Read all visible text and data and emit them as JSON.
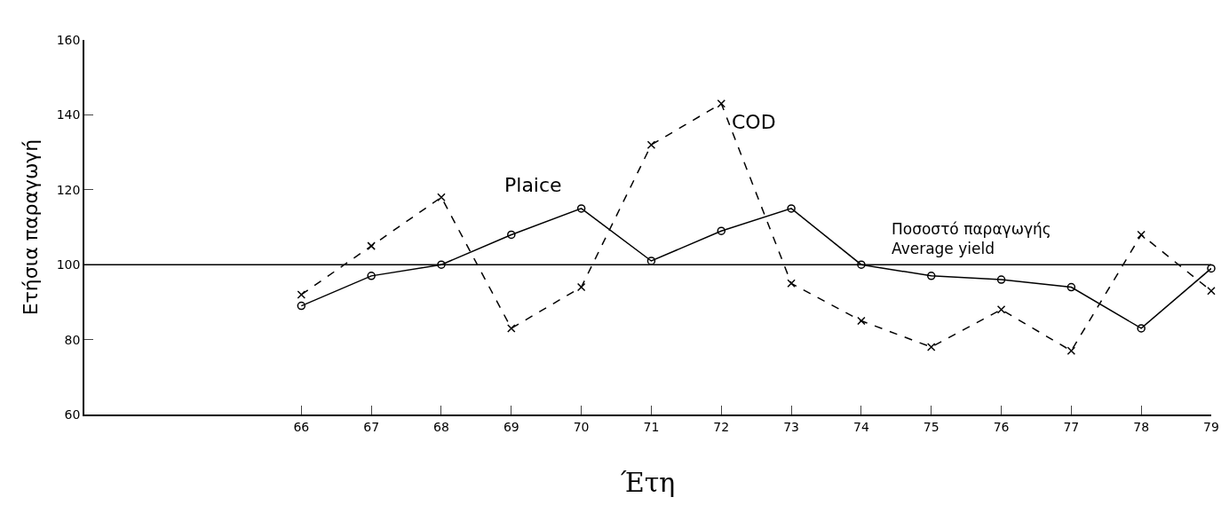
{
  "chart_data": {
    "type": "line",
    "xlabel": "Έτη",
    "ylabel": "Ετήσια παραγωγή",
    "categories": [
      "66",
      "67",
      "68",
      "69",
      "70",
      "71",
      "72",
      "73",
      "74",
      "75",
      "76",
      "77",
      "78",
      "79"
    ],
    "series": [
      {
        "name": "Plaice",
        "color": "#000000",
        "marker": "circle",
        "line_style": "solid",
        "values": [
          89,
          97,
          100,
          108,
          115,
          101,
          109,
          115,
          100,
          97,
          96,
          94,
          83,
          99
        ]
      },
      {
        "name": "COD",
        "color": "#000000",
        "marker": "cross",
        "line_style": "dashed",
        "values": [
          92,
          105,
          118,
          83,
          94,
          132,
          143,
          95,
          85,
          78,
          88,
          77,
          108,
          93
        ]
      }
    ],
    "ylim": [
      60,
      160
    ],
    "yticks": [
      60,
      80,
      100,
      120,
      140,
      160
    ],
    "grid": false,
    "legend": false,
    "ref_lines": [
      {
        "axis": "y",
        "value": 100,
        "label": "Ποσοστό παραγωγής\nAverage yield",
        "color": "#000000",
        "line_style": "solid"
      }
    ]
  }
}
